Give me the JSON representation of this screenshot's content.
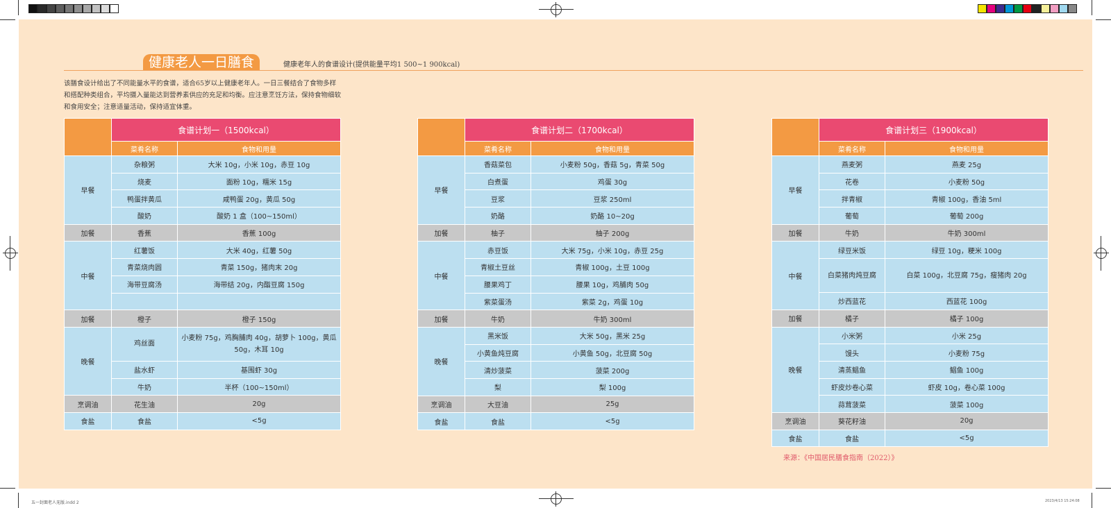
{
  "header": {
    "title": "健康老人一日膳食",
    "subtitle": "健康老年人的食谱设计(提供能量平均1 500~1 900kcal)"
  },
  "intro": "该膳食设计给出了不同能量水平的食谱，适合65岁以上健康老年人。一日三餐结合了食物多样和搭配种类组合，平均摄入量能达到营养素供应的充足和均衡。应注意烹饪方法，保持食物细软和食用安全；注意适量活动，保持适宜体重。",
  "columns": {
    "dish": "菜肴名称",
    "food": "食物和用量"
  },
  "plans": [
    {
      "title": "食谱计划一（1500kcal）",
      "sections": [
        {
          "meal": "早餐",
          "type": "main",
          "rows": [
            {
              "dish": "杂粮粥",
              "food": "大米 10g，小米 10g，赤豆 10g"
            },
            {
              "dish": "烧麦",
              "food": "面粉 10g，糯米 15g"
            },
            {
              "dish": "鸭蛋拌黄瓜",
              "food": "咸鸭蛋 20g，黄瓜 50g"
            },
            {
              "dish": "酸奶",
              "food": "酸奶 1 盒（100~150ml）"
            }
          ]
        },
        {
          "meal": "加餐",
          "type": "extra",
          "rows": [
            {
              "dish": "香蕉",
              "food": "香蕉 100g"
            }
          ]
        },
        {
          "meal": "中餐",
          "type": "main",
          "rows": [
            {
              "dish": "红薯饭",
              "food": "大米 40g，红薯 50g"
            },
            {
              "dish": "青菜烧肉圆",
              "food": "青菜 150g，猪肉末 20g"
            },
            {
              "dish": "海带豆腐汤",
              "food": "海带结 20g，内酯豆腐 150g"
            },
            {
              "dish": "",
              "food": ""
            }
          ]
        },
        {
          "meal": "加餐",
          "type": "extra",
          "rows": [
            {
              "dish": "橙子",
              "food": "橙子 150g"
            }
          ]
        },
        {
          "meal": "晚餐",
          "type": "main",
          "rows": [
            {
              "dish": "鸡丝面",
              "food": "小麦粉 75g，鸡胸脯肉 40g，胡萝卜 100g，黄瓜 50g，木耳 10g",
              "tall": true
            },
            {
              "dish": "盐水虾",
              "food": "基围虾 30g"
            },
            {
              "dish": "牛奶",
              "food": "半杯（100~150ml）"
            }
          ]
        },
        {
          "meal": "烹调油",
          "type": "extra",
          "rows": [
            {
              "dish": "花生油",
              "food": "20g"
            }
          ]
        },
        {
          "meal": "食盐",
          "type": "main",
          "rows": [
            {
              "dish": "食盐",
              "food": "<5g"
            }
          ]
        }
      ]
    },
    {
      "title": "食谱计划二（1700kcal）",
      "sections": [
        {
          "meal": "早餐",
          "type": "main",
          "rows": [
            {
              "dish": "香菇菜包",
              "food": "小麦粉 50g，香菇 5g，青菜 50g"
            },
            {
              "dish": "白煮蛋",
              "food": "鸡蛋 30g"
            },
            {
              "dish": "豆浆",
              "food": "豆浆 250ml"
            },
            {
              "dish": "奶酪",
              "food": "奶酪 10~20g"
            }
          ]
        },
        {
          "meal": "加餐",
          "type": "extra",
          "rows": [
            {
              "dish": "柚子",
              "food": "柚子 200g"
            }
          ]
        },
        {
          "meal": "中餐",
          "type": "main",
          "rows": [
            {
              "dish": "赤豆饭",
              "food": "大米 75g，小米 10g，赤豆 25g"
            },
            {
              "dish": "青椒土豆丝",
              "food": "青椒 100g，土豆 100g"
            },
            {
              "dish": "腰果鸡丁",
              "food": "腰果 10g，鸡脯肉 50g"
            },
            {
              "dish": "紫菜蛋汤",
              "food": "紫菜 2g，鸡蛋 10g"
            }
          ]
        },
        {
          "meal": "加餐",
          "type": "extra",
          "rows": [
            {
              "dish": "牛奶",
              "food": "牛奶 300ml"
            }
          ]
        },
        {
          "meal": "晚餐",
          "type": "main",
          "rows": [
            {
              "dish": "黑米饭",
              "food": "大米 50g，黑米 25g"
            },
            {
              "dish": "小黄鱼炖豆腐",
              "food": "小黄鱼 50g，北豆腐 50g"
            },
            {
              "dish": "清炒菠菜",
              "food": "菠菜 200g"
            },
            {
              "dish": "梨",
              "food": "梨 100g"
            }
          ]
        },
        {
          "meal": "烹调油",
          "type": "extra",
          "rows": [
            {
              "dish": "大豆油",
              "food": "25g"
            }
          ]
        },
        {
          "meal": "食盐",
          "type": "main",
          "rows": [
            {
              "dish": "食盐",
              "food": "<5g"
            }
          ]
        }
      ]
    },
    {
      "title": "食谱计划三（1900kcal）",
      "sections": [
        {
          "meal": "早餐",
          "type": "main",
          "rows": [
            {
              "dish": "燕麦粥",
              "food": "燕麦 25g"
            },
            {
              "dish": "花卷",
              "food": "小麦粉 50g"
            },
            {
              "dish": "拌青椒",
              "food": "青椒 100g，香油 5ml"
            },
            {
              "dish": "葡萄",
              "food": "葡萄 200g"
            }
          ]
        },
        {
          "meal": "加餐",
          "type": "extra",
          "rows": [
            {
              "dish": "牛奶",
              "food": "牛奶 300ml"
            }
          ]
        },
        {
          "meal": "中餐",
          "type": "main",
          "rows": [
            {
              "dish": "绿豆米饭",
              "food": "绿豆 10g，粳米 100g"
            },
            {
              "dish": "白菜猪肉炖豆腐",
              "food": "白菜 100g，北豆腐 75g，瘦猪肉 20g",
              "tall": true
            },
            {
              "dish": "炒西蓝花",
              "food": "西蓝花 100g"
            }
          ]
        },
        {
          "meal": "加餐",
          "type": "extra",
          "rows": [
            {
              "dish": "橘子",
              "food": "橘子 100g"
            }
          ]
        },
        {
          "meal": "晚餐",
          "type": "main",
          "rows": [
            {
              "dish": "小米粥",
              "food": "小米 25g"
            },
            {
              "dish": "馒头",
              "food": "小麦粉 75g"
            },
            {
              "dish": "清蒸鲳鱼",
              "food": "鲳鱼 100g"
            },
            {
              "dish": "虾皮炒卷心菜",
              "food": "虾皮 10g，卷心菜 100g"
            },
            {
              "dish": "蒜茸菠菜",
              "food": "菠菜 100g"
            }
          ]
        },
        {
          "meal": "烹调油",
          "type": "extra",
          "rows": [
            {
              "dish": "葵花籽油",
              "food": "20g"
            }
          ]
        },
        {
          "meal": "食盐",
          "type": "main",
          "rows": [
            {
              "dish": "食盐",
              "food": "<5g"
            }
          ]
        }
      ]
    }
  ],
  "source": "来源：《中国居民膳食指南（2022）》",
  "footer": {
    "left": "五一封面老人无版.indd 2",
    "right": "2023/4/13 15:24:08"
  },
  "colors": {
    "page_bg": "#fde5c9",
    "title_pill": "#f39a43",
    "table_title": "#ea4a71",
    "table_header": "#f39a43",
    "cell_blue": "#bcdff0",
    "cell_gray": "#c8c8c8",
    "source_text": "#e05a6b"
  },
  "swatches_left": [
    "#111111",
    "#2a2a2a",
    "#444444",
    "#5e5e5e",
    "#777777",
    "#8f8f8f",
    "#a8a8a8",
    "#c2c2c2",
    "#dcdcdc",
    "#ffffff"
  ],
  "swatches_right": [
    "#f4e400",
    "#e5007f",
    "#3c2b8e",
    "#0097d8",
    "#009944",
    "#e60012",
    "#222222",
    "#f5f09a",
    "#f19ec2",
    "#a0d8ef",
    "#888888"
  ]
}
